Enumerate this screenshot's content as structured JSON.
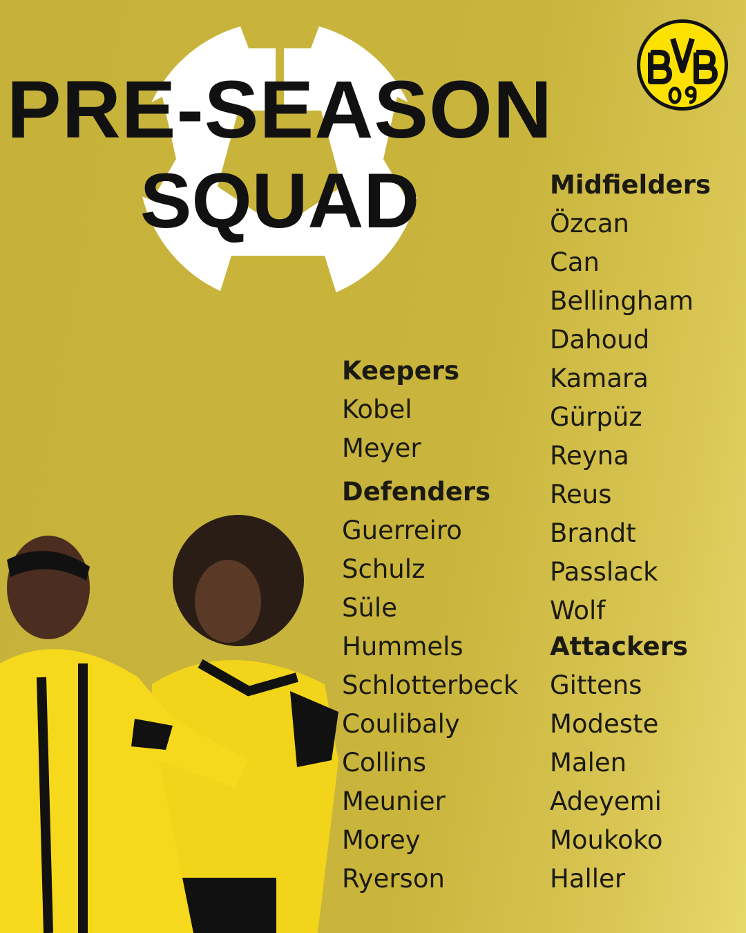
{
  "title": {
    "line1": "PRE-SEASON",
    "line2": "SQUAD"
  },
  "logo": {
    "text": "BVB",
    "year": "09",
    "colors": {
      "fill": "#fde100",
      "ring": "#111111"
    }
  },
  "colors": {
    "background": "#c8b43b",
    "text": "#1b1a12"
  },
  "keepers": {
    "heading": "Keepers",
    "players": [
      "Kobel",
      "Meyer"
    ]
  },
  "defenders": {
    "heading": "Defenders",
    "players": [
      "Guerreiro",
      "Schulz",
      "Süle",
      "Hummels",
      "Schlotterbeck",
      "Coulibaly",
      "Collins",
      "Meunier",
      "Morey",
      "Ryerson"
    ]
  },
  "midfielders": {
    "heading": "Midfielders",
    "players": [
      "Özcan",
      "Can",
      "Bellingham",
      "Dahoud",
      "Kamara",
      "Gürpüz",
      "Reyna",
      "Reus",
      "Brandt",
      "Passlack",
      "Wolf"
    ]
  },
  "attackers": {
    "heading": "Attackers",
    "players": [
      "Gittens",
      "Modeste",
      "Malen",
      "Adeyemi",
      "Moukoko",
      "Haller"
    ]
  }
}
